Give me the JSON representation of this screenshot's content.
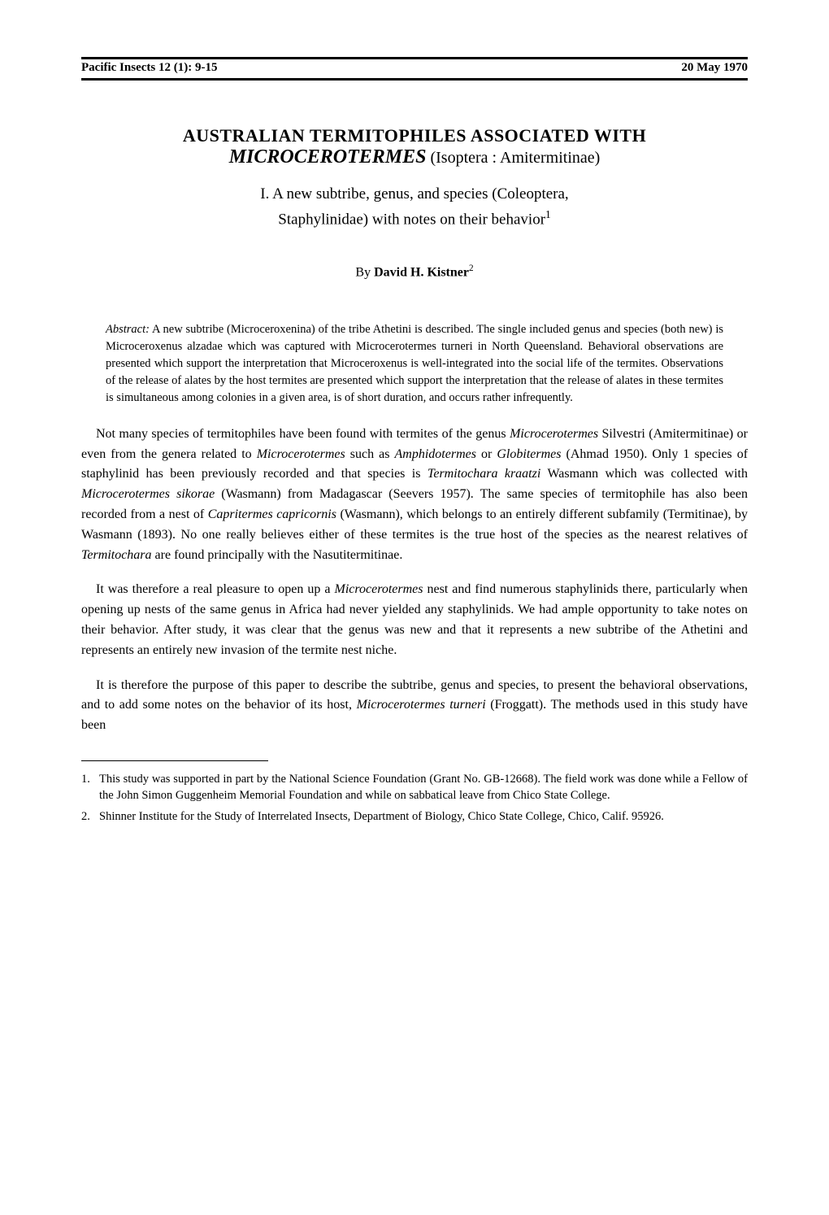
{
  "header": {
    "journal": "Pacific Insects 12 (1): 9-15",
    "date": "20 May 1970"
  },
  "title": {
    "line1": "AUSTRALIAN TERMITOPHILES ASSOCIATED WITH",
    "genus": "MICROCEROTERMES",
    "taxon": " (Isoptera : Amitermitinae)",
    "subtitle_line1": "I. A new subtribe, genus, and species (Coleoptera,",
    "subtitle_line2": "Staphylinidae) with notes on their behavior"
  },
  "author": {
    "by": "By ",
    "name": "David H. Kistner",
    "sup": "2"
  },
  "abstract": {
    "label": "Abstract:",
    "text": "  A new subtribe (Microceroxenina) of the tribe Athetini is described. The single included genus and species (both new) is Microceroxenus alzadae which was captured with Microcerotermes turneri in North Queensland. Behavioral observations are presented which support the interpretation that Microceroxenus is well-integrated into the social life of the termites. Observations of the release of alates by the host termites are presented which support the interpretation that the release of alates in these termites is simultaneous among colonies in a given area, is of short duration, and occurs rather infrequently."
  },
  "paragraphs": {
    "p1_a": "Not many species of termitophiles have been found with termites of the genus ",
    "p1_i1": "Microcerotermes",
    "p1_b": " Silvestri (Amitermitinae) or even from the genera related to ",
    "p1_i2": "Microcerotermes",
    "p1_c": " such as ",
    "p1_i3": "Amphidotermes",
    "p1_d": " or ",
    "p1_i4": "Globitermes",
    "p1_e": " (Ahmad 1950). Only 1 species of staphylinid has been previously recorded and that species is ",
    "p1_i5": "Termitochara kraatzi",
    "p1_f": " Wasmann which was collected with ",
    "p1_i6": "Microcerotermes sikorae",
    "p1_g": " (Wasmann) from Madagascar (Seevers 1957). The same species of termitophile has also been recorded from a nest of ",
    "p1_i7": "Capritermes capricornis",
    "p1_h": " (Wasmann), which belongs to an entirely different subfamily (Termitinae), by Wasmann (1893). No one really believes either of these termites is the true host of the species as the nearest relatives of ",
    "p1_i8": "Termitochara",
    "p1_j": " are found principally with the Nasutitermitinae.",
    "p2_a": "It was therefore a real pleasure to open up a ",
    "p2_i1": "Microcerotermes",
    "p2_b": " nest and find numerous staphylinids there, particularly when opening up nests of the same genus in Africa had never yielded any staphylinids. We had ample opportunity to take notes on their behavior. After study, it was clear that the genus was new and that it represents a new subtribe of the Athetini and represents an entirely new invasion of the termite nest niche.",
    "p3_a": "It is therefore the purpose of this paper to describe the subtribe, genus and species, to present the behavioral observations, and to add some notes on the behavior of its host, ",
    "p3_i1": "Microcerotermes turneri",
    "p3_b": " (Froggatt). The methods used in this study have been"
  },
  "footnotes": {
    "n1": "1.",
    "t1": "This study was supported in part by the National Science Foundation (Grant No. GB-12668). The field work was done while a Fellow of the John Simon Guggenheim Memorial Foundation and while on sabbatical leave from Chico State College.",
    "n2": "2.",
    "t2": "Shinner Institute for the Study of Interrelated Insects, Department of Biology, Chico State College, Chico, Calif. 95926."
  }
}
